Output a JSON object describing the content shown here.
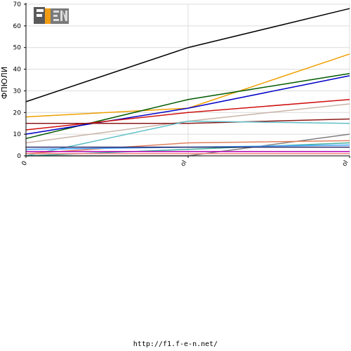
{
  "logo": {
    "text": "F1EN"
  },
  "footer": {
    "url": "http://f1.f-e-n.net/"
  },
  "chart_data": {
    "type": "line",
    "ylabel": "ФПЮЛИ",
    "xlabel": "",
    "ylim": [
      0,
      70
    ],
    "yticks": [
      0,
      10,
      20,
      30,
      40,
      50,
      60,
      70
    ],
    "grid": true,
    "categories": [
      "0",
      "ol",
      "ol"
    ],
    "series": [
      {
        "color": "#000000",
        "values": [
          25,
          50,
          68
        ]
      },
      {
        "color": "#f0a000",
        "values": [
          18,
          22,
          47
        ]
      },
      {
        "color": "#005a00",
        "values": [
          8,
          26,
          38
        ]
      },
      {
        "color": "#0000c8",
        "values": [
          10,
          22,
          37
        ]
      },
      {
        "color": "#d01010",
        "values": [
          12,
          20,
          26
        ]
      },
      {
        "color": "#c8b4a8",
        "values": [
          6,
          16,
          24
        ]
      },
      {
        "color": "#8c1a1a",
        "values": [
          15,
          15,
          17
        ]
      },
      {
        "color": "#60c0c8",
        "values": [
          0,
          16,
          15
        ]
      },
      {
        "color": "#808080",
        "values": [
          0,
          0,
          10
        ]
      },
      {
        "color": "#e08060",
        "values": [
          1,
          6,
          7
        ]
      },
      {
        "color": "#40b0a0",
        "values": [
          0,
          3,
          6
        ]
      },
      {
        "color": "#40a0ff",
        "values": [
          3,
          4,
          5
        ]
      },
      {
        "color": "#2a2a6a",
        "values": [
          4,
          4,
          4
        ]
      },
      {
        "color": "#b000b0",
        "values": [
          2,
          2,
          2
        ]
      },
      {
        "color": "#ff8080",
        "values": [
          1,
          1,
          1
        ]
      }
    ]
  }
}
